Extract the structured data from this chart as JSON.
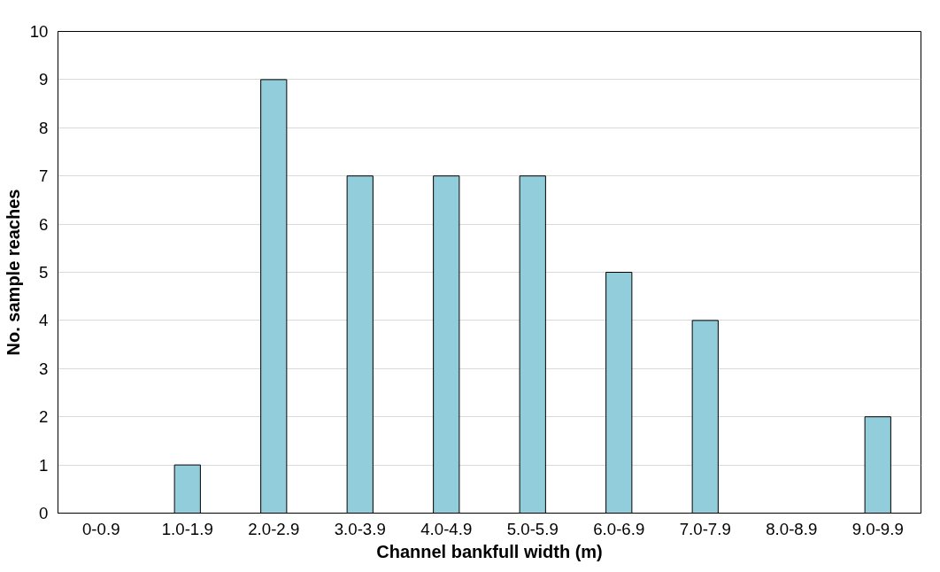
{
  "chart_data": {
    "type": "bar",
    "xlabel": "Channel bankfull width (m)",
    "ylabel": "No. sample reaches",
    "categories": [
      "0-0.9",
      "1.0-1.9",
      "2.0-2.9",
      "3.0-3.9",
      "4.0-4.9",
      "5.0-5.9",
      "6.0-6.9",
      "7.0-7.9",
      "8.0-8.9",
      "9.0-9.9"
    ],
    "values": [
      0,
      1,
      9,
      7,
      7,
      7,
      5,
      4,
      0,
      2
    ],
    "color": "#92cddc",
    "ylim": [
      0,
      10
    ],
    "yticks": [
      0,
      1,
      2,
      3,
      4,
      5,
      6,
      7,
      8,
      9,
      10
    ],
    "grid": "y"
  }
}
